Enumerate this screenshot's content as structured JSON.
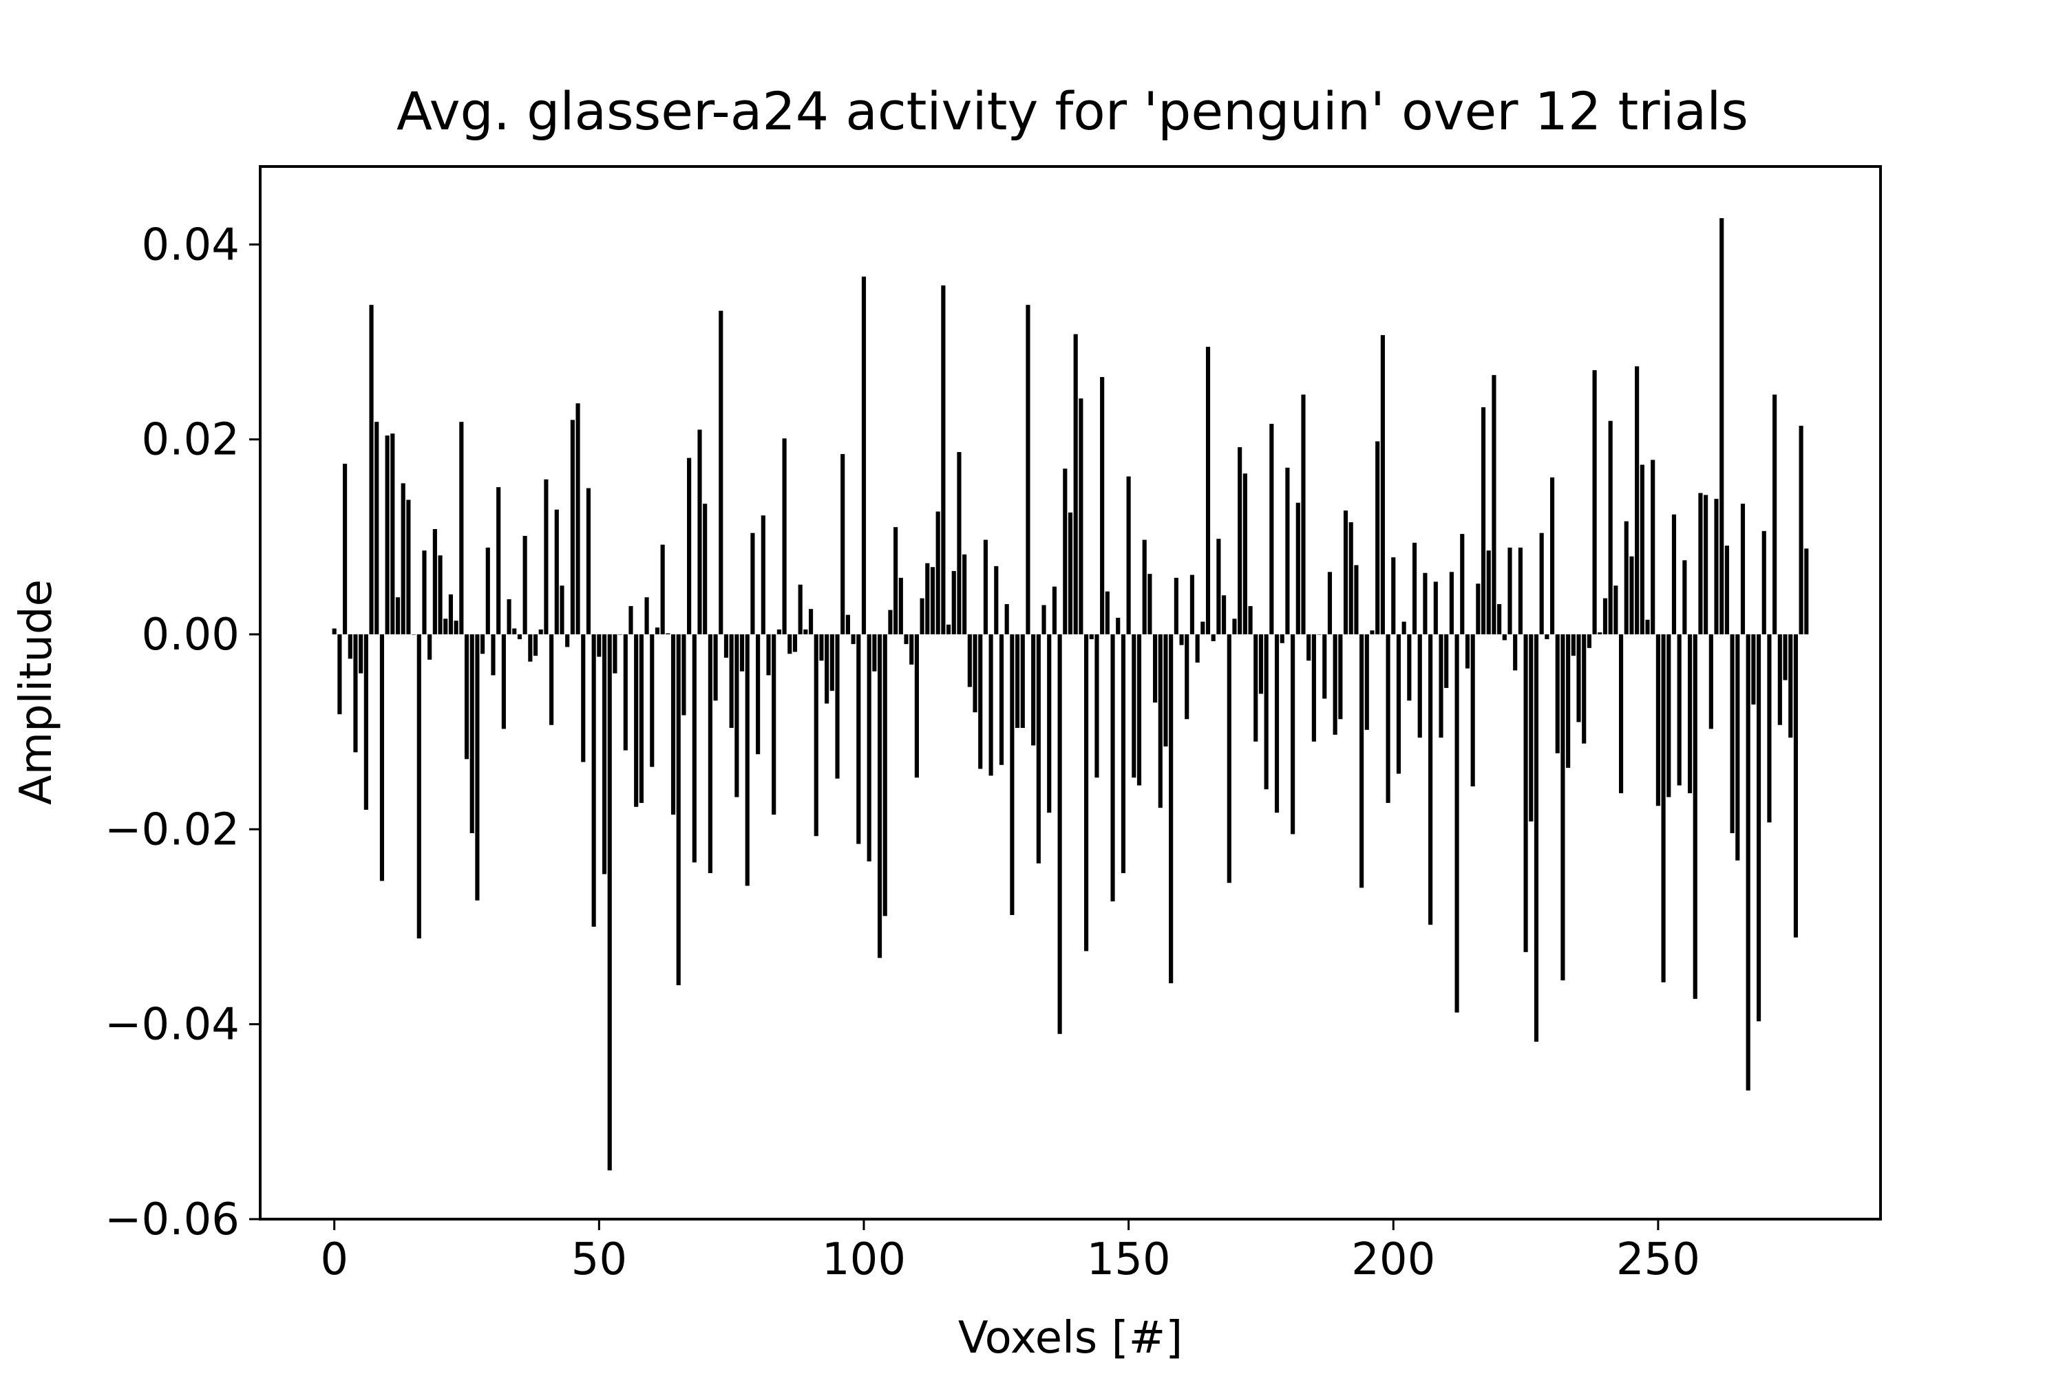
{
  "chart_data": {
    "type": "bar",
    "title": "Avg. glasser-a24 activity for 'penguin' over 12 trials",
    "xlabel": "Voxels [#]",
    "ylabel": "Amplitude",
    "xlim": [
      -14,
      292
    ],
    "ylim": [
      -0.06,
      0.048
    ],
    "xticks": [
      0,
      50,
      100,
      150,
      200,
      250
    ],
    "xtick_labels": [
      "0",
      "50",
      "100",
      "150",
      "200",
      "250"
    ],
    "yticks": [
      -0.06,
      -0.04,
      -0.02,
      0.0,
      0.02,
      0.04
    ],
    "ytick_labels": [
      "−0.06",
      "−0.04",
      "−0.02",
      "0.00",
      "0.02",
      "0.04"
    ],
    "grid": false,
    "bar_color": "#000000",
    "values": [
      0.0006,
      -0.0082,
      0.0175,
      -0.0025,
      -0.0121,
      -0.004,
      -0.018,
      0.0338,
      0.0218,
      -0.0253,
      0.0204,
      0.0206,
      0.0038,
      0.0155,
      0.0138,
      0.0,
      -0.0312,
      0.0086,
      -0.0026,
      0.0108,
      0.0081,
      0.0016,
      0.0041,
      0.0014,
      0.0218,
      -0.0128,
      -0.0204,
      -0.0273,
      -0.002,
      0.0089,
      -0.0042,
      0.0151,
      -0.0097,
      0.0036,
      0.0006,
      -0.0005,
      0.0101,
      -0.0028,
      -0.0022,
      0.0005,
      0.0159,
      -0.0093,
      0.0128,
      0.005,
      -0.0013,
      0.022,
      0.0237,
      -0.0131,
      0.015,
      -0.03,
      -0.0023,
      -0.0246,
      -0.055,
      -0.004,
      0.0,
      -0.0119,
      0.0029,
      -0.0177,
      -0.0173,
      0.0038,
      -0.0136,
      0.0007,
      0.0092,
      0.0001,
      -0.0185,
      -0.036,
      -0.0083,
      0.0181,
      -0.0234,
      0.021,
      0.0134,
      -0.0245,
      -0.0068,
      0.0332,
      -0.0024,
      -0.0096,
      -0.0167,
      -0.0038,
      -0.0258,
      0.0104,
      -0.0123,
      0.0122,
      -0.0042,
      -0.0185,
      0.0005,
      0.0201,
      -0.002,
      -0.0018,
      0.0051,
      0.0005,
      0.0026,
      -0.0207,
      -0.0027,
      -0.0071,
      -0.0058,
      -0.0148,
      0.0185,
      0.002,
      -0.001,
      -0.0215,
      0.0367,
      -0.0233,
      -0.0038,
      -0.0332,
      -0.0289,
      0.0025,
      0.011,
      0.0058,
      -0.001,
      -0.0031,
      -0.0147,
      0.0037,
      0.0073,
      0.0069,
      0.0126,
      0.0358,
      0.001,
      0.0065,
      0.0187,
      0.0082,
      -0.0054,
      -0.008,
      -0.0138,
      0.0097,
      -0.0145,
      0.007,
      -0.0134,
      0.0031,
      -0.0288,
      -0.0096,
      -0.0096,
      0.0338,
      -0.0114,
      -0.0235,
      0.003,
      -0.0183,
      0.0049,
      -0.041,
      0.017,
      0.0125,
      0.0308,
      0.0242,
      -0.0325,
      -0.0005,
      -0.0147,
      0.0264,
      0.0044,
      -0.0274,
      0.0017,
      -0.0245,
      0.0162,
      -0.0147,
      -0.0155,
      0.0097,
      0.0062,
      -0.007,
      -0.0178,
      -0.0115,
      -0.0358,
      0.0058,
      -0.0011,
      -0.0087,
      0.0061,
      -0.0029,
      0.0013,
      0.0295,
      -0.0007,
      0.0098,
      0.004,
      -0.0255,
      0.0016,
      0.0192,
      0.0165,
      0.0029,
      -0.011,
      -0.0061,
      -0.0159,
      0.0216,
      -0.0183,
      -0.0009,
      0.0171,
      -0.0205,
      0.0135,
      0.0246,
      -0.0027,
      -0.011,
      0.0,
      -0.0066,
      0.0064,
      -0.0103,
      -0.0087,
      0.0127,
      0.0115,
      0.0071,
      -0.026,
      -0.0098,
      0.0004,
      0.0198,
      0.0307,
      -0.0173,
      0.0079,
      -0.0143,
      0.0013,
      -0.0068,
      0.0094,
      -0.0106,
      0.0063,
      -0.0298,
      0.0054,
      -0.0106,
      -0.0055,
      0.0064,
      -0.0388,
      0.0103,
      -0.0035,
      -0.0156,
      0.0052,
      0.0233,
      0.0086,
      0.0266,
      0.0031,
      -0.0006,
      0.0089,
      -0.0037,
      0.0089,
      -0.0326,
      -0.0192,
      -0.0418,
      0.0104,
      -0.0005,
      0.0161,
      -0.0122,
      -0.0355,
      -0.0137,
      -0.0022,
      -0.009,
      -0.0112,
      -0.0014,
      0.0271,
      0.0002,
      0.0037,
      0.0219,
      0.005,
      -0.0163,
      0.0116,
      0.008,
      0.0275,
      0.0174,
      0.0015,
      0.0179,
      -0.0176,
      -0.0357,
      -0.0167,
      0.0123,
      -0.0155,
      0.0076,
      -0.0163,
      -0.0374,
      0.0145,
      0.0143,
      -0.0097,
      0.0139,
      0.0427,
      0.0091,
      -0.0204,
      -0.0232,
      0.0134,
      -0.0468,
      -0.0072,
      -0.0397,
      0.0106,
      -0.0193,
      0.0246,
      -0.0093,
      -0.0047,
      -0.0106,
      -0.0311,
      0.0214,
      0.0088
    ]
  }
}
